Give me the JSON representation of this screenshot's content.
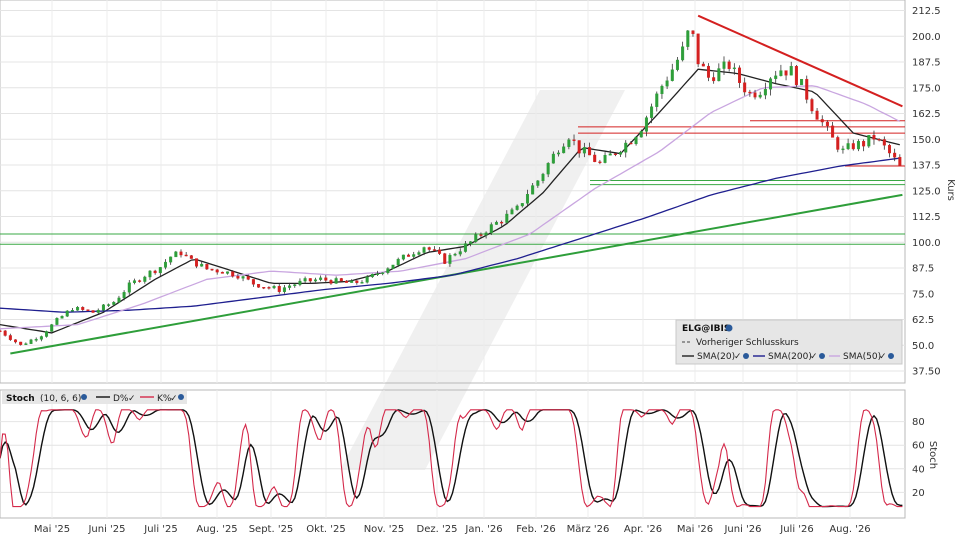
{
  "chart_data": [
    {
      "type": "candlestick",
      "symbol": "ELG@IBIS",
      "ylabel": "Kurs",
      "ylim": [
        37.5,
        212.5
      ],
      "yticks": [
        "212.5",
        "200.0",
        "187.5",
        "175.0",
        "162.5",
        "150.0",
        "137.5",
        "125.0",
        "112.5",
        "100.0",
        "87.5",
        "75.0",
        "62.5",
        "50.0",
        "37.50"
      ],
      "xticks": [
        "Mai '25",
        "Juni '25",
        "Juli '25",
        "Aug. '25",
        "Sept. '25",
        "Okt. '25",
        "Nov. '25",
        "Dez. '25",
        "Jan. '26",
        "Feb. '26",
        "März '26",
        "Apr. '26",
        "Mai '26",
        "Juni '26",
        "Juli '26",
        "Aug. '26"
      ],
      "close_points": [
        [
          0,
          57
        ],
        [
          8,
          50
        ],
        [
          16,
          55
        ],
        [
          22,
          62
        ],
        [
          28,
          68
        ],
        [
          36,
          66
        ],
        [
          44,
          71
        ],
        [
          50,
          79
        ],
        [
          56,
          84
        ],
        [
          62,
          88
        ],
        [
          66,
          93
        ],
        [
          70,
          95
        ],
        [
          74,
          91
        ],
        [
          80,
          87
        ],
        [
          86,
          86
        ],
        [
          92,
          84
        ],
        [
          98,
          80
        ],
        [
          104,
          78
        ],
        [
          108,
          77
        ],
        [
          112,
          79
        ],
        [
          118,
          81
        ],
        [
          124,
          82
        ],
        [
          130,
          81
        ],
        [
          136,
          80
        ],
        [
          142,
          82
        ],
        [
          146,
          85
        ],
        [
          150,
          88
        ],
        [
          154,
          91
        ],
        [
          158,
          94
        ],
        [
          164,
          98
        ],
        [
          168,
          95
        ],
        [
          172,
          91
        ],
        [
          176,
          95
        ],
        [
          182,
          100
        ],
        [
          188,
          106
        ],
        [
          194,
          111
        ],
        [
          200,
          116
        ],
        [
          204,
          124
        ],
        [
          208,
          130
        ],
        [
          212,
          138
        ],
        [
          216,
          146
        ],
        [
          220,
          152
        ],
        [
          224,
          145
        ],
        [
          228,
          142
        ],
        [
          232,
          138
        ],
        [
          236,
          142
        ],
        [
          240,
          146
        ],
        [
          244,
          150
        ],
        [
          248,
          156
        ],
        [
          252,
          166
        ],
        [
          256,
          176
        ],
        [
          260,
          184
        ],
        [
          264,
          193
        ],
        [
          267,
          205
        ],
        [
          270,
          188
        ],
        [
          274,
          180
        ],
        [
          278,
          183
        ],
        [
          282,
          186
        ],
        [
          286,
          178
        ],
        [
          290,
          172
        ],
        [
          294,
          174
        ],
        [
          298,
          181
        ],
        [
          302,
          184
        ],
        [
          306,
          183
        ],
        [
          310,
          176
        ],
        [
          314,
          166
        ],
        [
          318,
          158
        ],
        [
          322,
          150
        ],
        [
          326,
          144
        ],
        [
          330,
          147
        ],
        [
          334,
          148
        ],
        [
          338,
          151
        ],
        [
          342,
          146
        ],
        [
          346,
          140
        ],
        [
          349,
          134
        ]
      ],
      "series": [
        {
          "name": "SMA(20)",
          "color": "#222222",
          "values": [
            [
              0,
              60
            ],
            [
              20,
              56
            ],
            [
              40,
              66
            ],
            [
              60,
              82
            ],
            [
              75,
              92
            ],
            [
              90,
              86
            ],
            [
              105,
              80
            ],
            [
              120,
              80
            ],
            [
              135,
              81
            ],
            [
              150,
              86
            ],
            [
              165,
              95
            ],
            [
              180,
              98
            ],
            [
              195,
              108
            ],
            [
              210,
              124
            ],
            [
              225,
              146
            ],
            [
              240,
              143
            ],
            [
              255,
              163
            ],
            [
              270,
              184
            ],
            [
              285,
              182
            ],
            [
              300,
              177
            ],
            [
              315,
              173
            ],
            [
              330,
              153
            ],
            [
              349,
              147
            ]
          ]
        },
        {
          "name": "SMA(200)",
          "color": "#1f1f8f",
          "values": [
            [
              0,
              68
            ],
            [
              25,
              66
            ],
            [
              50,
              67
            ],
            [
              75,
              69
            ],
            [
              100,
              73
            ],
            [
              125,
              77
            ],
            [
              150,
              80
            ],
            [
              175,
              84
            ],
            [
              200,
              92
            ],
            [
              225,
              102
            ],
            [
              250,
              112
            ],
            [
              275,
              123
            ],
            [
              300,
              131
            ],
            [
              325,
              137
            ],
            [
              349,
              141
            ]
          ]
        },
        {
          "name": "SMA(50)",
          "color": "#c9a6e0",
          "values": [
            [
              0,
              58
            ],
            [
              30,
              60
            ],
            [
              55,
              70
            ],
            [
              80,
              82
            ],
            [
              105,
              86
            ],
            [
              130,
              84
            ],
            [
              155,
              86
            ],
            [
              180,
              92
            ],
            [
              205,
              104
            ],
            [
              230,
              126
            ],
            [
              255,
              144
            ],
            [
              275,
              163
            ],
            [
              295,
              175
            ],
            [
              315,
              176
            ],
            [
              335,
              167
            ],
            [
              349,
              158
            ]
          ]
        }
      ],
      "trendlines": [
        {
          "color": "#2e9e3a",
          "from": [
            4,
            46
          ],
          "to": [
            349,
            123
          ]
        },
        {
          "color": "#d42020",
          "from": [
            270,
            210
          ],
          "to": [
            349,
            166
          ]
        }
      ],
      "levels_green": [
        99,
        104,
        128,
        130
      ],
      "levels_red": [
        137,
        153,
        156,
        159
      ],
      "legend": [
        "ELG@IBIS",
        "Vorheriger Schlusskurs",
        "SMA(20)",
        "SMA(200)",
        "SMA(50)"
      ]
    },
    {
      "type": "line",
      "title": "Stoch",
      "params": "(10, 6, 6)",
      "ylabel": "Stoch",
      "ylim": [
        0,
        100
      ],
      "yticks": [
        "80",
        "60",
        "40",
        "20"
      ],
      "series": [
        {
          "name": "D%",
          "color": "#111111"
        },
        {
          "name": "K%",
          "color": "#d4294a"
        }
      ]
    }
  ]
}
